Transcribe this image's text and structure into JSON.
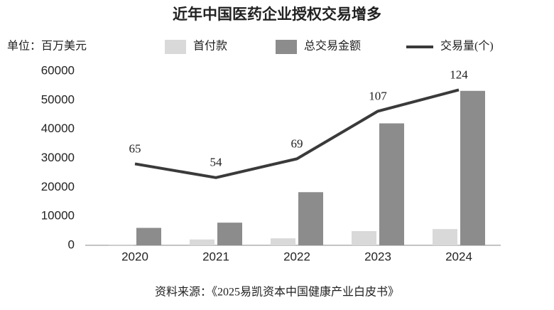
{
  "chart_data": {
    "type": "bar-line",
    "title": "近年中国医药企业授权交易增多",
    "unit": "单位：百万美元",
    "source": "资料来源：《2025易凯资本中国健康产业白皮书》",
    "categories": [
      "2020",
      "2021",
      "2022",
      "2023",
      "2024"
    ],
    "series": [
      {
        "name": "首付款",
        "type": "bar",
        "color": "#d9d9d9",
        "values": [
          300,
          2000,
          2400,
          4900,
          5600
        ]
      },
      {
        "name": "总交易金额",
        "type": "bar",
        "color": "#8c8c8c",
        "values": [
          6000,
          7800,
          18300,
          42000,
          53200
        ]
      },
      {
        "name": "交易量(个)",
        "type": "line",
        "axis": "y2",
        "color": "#3a3a3a",
        "values": [
          65,
          54,
          69,
          107,
          124
        ]
      }
    ],
    "ylim": [
      0,
      60000
    ],
    "yticks": [
      0,
      10000,
      20000,
      30000,
      40000,
      50000,
      60000
    ],
    "y2lim": [
      0,
      139
    ],
    "grid": false
  }
}
